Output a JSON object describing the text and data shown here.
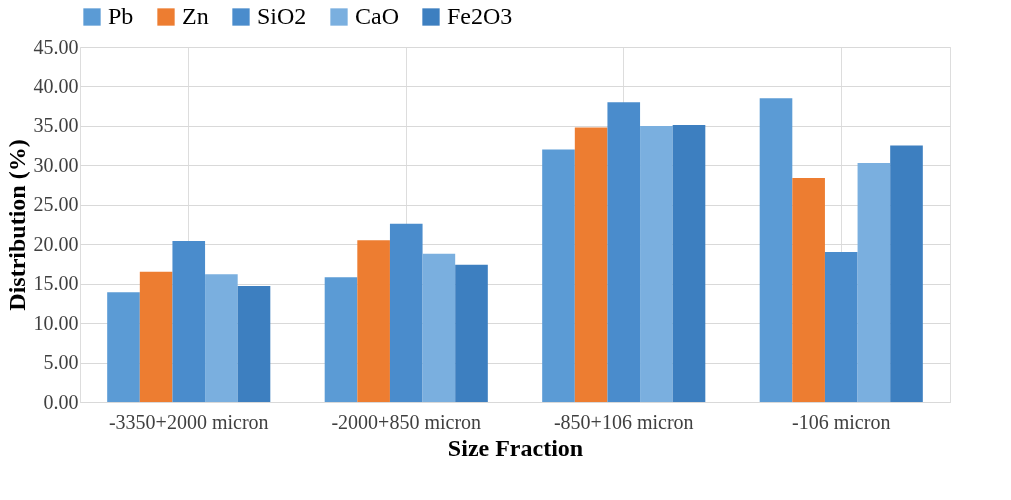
{
  "chart_data": {
    "type": "bar",
    "xlabel": "Size Fraction",
    "ylabel": "Distribution (%)",
    "categories": [
      "-3350+2000 micron",
      "-2000+850 micron",
      "-850+106 micron",
      "-106 micron"
    ],
    "series": [
      {
        "name": "Pb",
        "color": "#5b9bd5",
        "values": [
          13.9,
          15.8,
          32.0,
          38.5
        ]
      },
      {
        "name": "Zn",
        "color": "#ed7d31",
        "values": [
          16.5,
          20.5,
          34.8,
          28.4
        ]
      },
      {
        "name": "SiO2",
        "color": "#4a8ccc",
        "values": [
          20.4,
          22.6,
          38.0,
          19.0
        ]
      },
      {
        "name": "CaO",
        "color": "#7aafdf",
        "values": [
          16.2,
          18.8,
          35.0,
          30.3
        ]
      },
      {
        "name": "Fe2O3",
        "color": "#3d7fc0",
        "values": [
          14.7,
          17.4,
          35.1,
          32.5
        ]
      }
    ],
    "ylim": [
      0,
      45
    ],
    "yticks": [
      {
        "value": 0,
        "label": "0.00"
      },
      {
        "value": 5,
        "label": "5.00"
      },
      {
        "value": 10,
        "label": "10.00"
      },
      {
        "value": 15,
        "label": "15.00"
      },
      {
        "value": 20,
        "label": "20.00"
      },
      {
        "value": 25,
        "label": "25.00"
      },
      {
        "value": 30,
        "label": "30.00"
      },
      {
        "value": 35,
        "label": "35.00"
      },
      {
        "value": 40,
        "label": "40.00"
      },
      {
        "value": 45,
        "label": "45.00"
      }
    ],
    "grid": true,
    "legend": "top"
  }
}
